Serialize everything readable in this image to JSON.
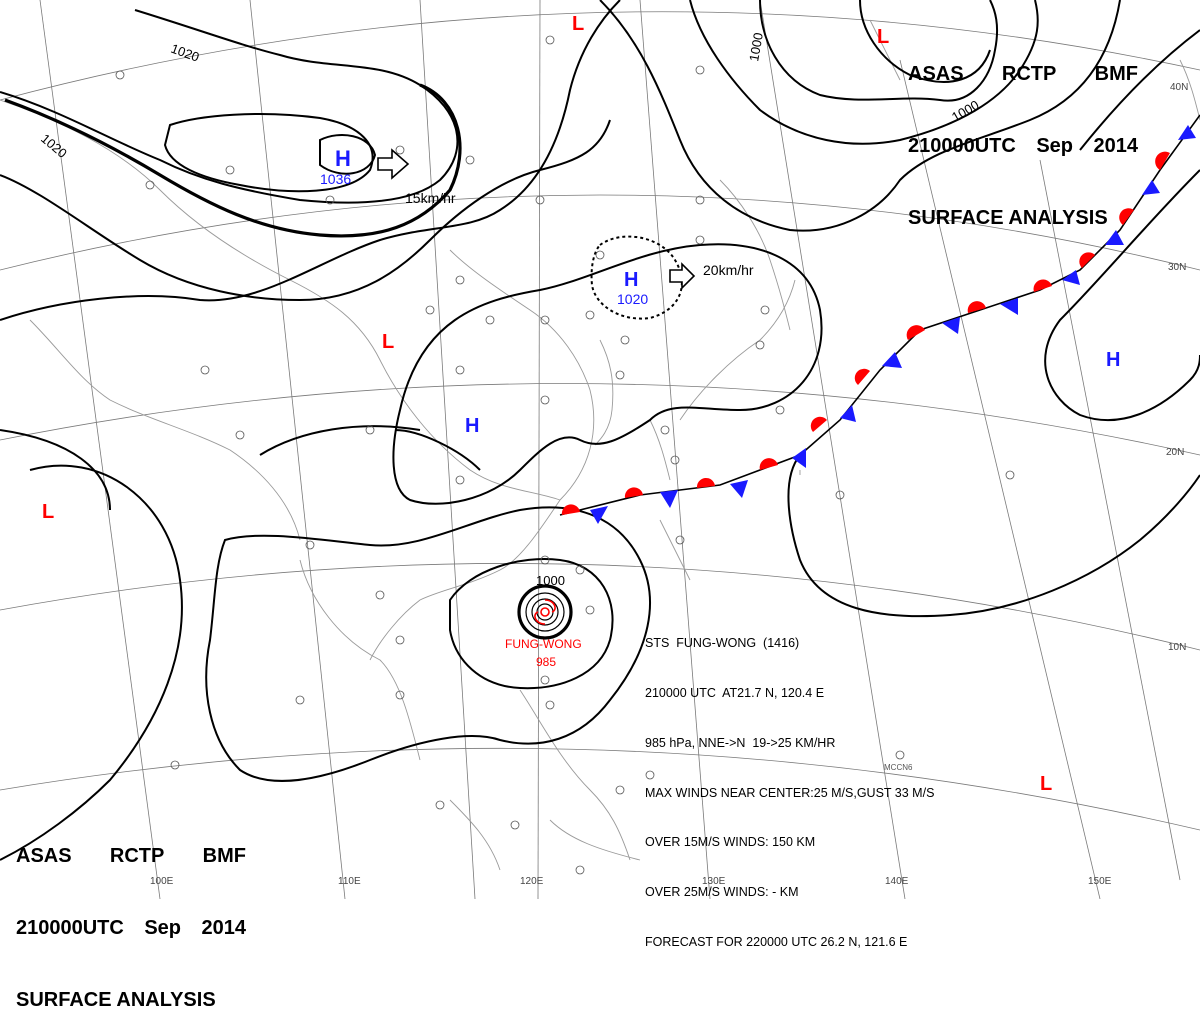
{
  "header": {
    "agency_line": [
      "ASAS",
      "RCTP",
      "BMF"
    ],
    "time_line": [
      "210000UTC",
      "Sep",
      "2014"
    ],
    "title": "SURFACE ANALYSIS"
  },
  "pressure_centers": [
    {
      "type": "H",
      "value": "1036",
      "motion": "15km/hr",
      "color": "#1a1aff"
    },
    {
      "type": "H",
      "value": "1020",
      "motion": "20km/hr",
      "color": "#1a1aff"
    },
    {
      "type": "H",
      "value": "",
      "motion": "",
      "color": "#1a1aff"
    },
    {
      "type": "H",
      "value": "",
      "motion": "",
      "color": "#1a1aff"
    },
    {
      "type": "L",
      "value": "",
      "motion": "",
      "color": "#ff0000"
    },
    {
      "type": "L",
      "value": "",
      "motion": "",
      "color": "#ff0000"
    },
    {
      "type": "L",
      "value": "",
      "motion": "",
      "color": "#ff0000"
    },
    {
      "type": "L",
      "value": "",
      "motion": "",
      "color": "#ff0000"
    }
  ],
  "isobar_labels": [
    "1020",
    "1020",
    "1000",
    "1000",
    "1000"
  ],
  "storm": {
    "name_label": "FUNG-WONG",
    "pressure_label": "985",
    "info": [
      "STS  FUNG-WONG  (1416)",
      "210000 UTC  AT21.7 N, 120.4 E",
      "985 hPa, NNE->N  19->25 KM/HR",
      "MAX WINDS NEAR CENTER:25 M/S,GUST 33 M/S",
      "OVER 15M/S WINDS: 150 KM",
      "OVER 25M/S WINDS: - KM",
      "FORECAST FOR 220000 UTC 26.2 N, 121.6 E"
    ],
    "color": "#ff0000"
  },
  "longitude_labels": [
    "100E",
    "110E",
    "120E",
    "130E",
    "140E",
    "150E"
  ],
  "latitude_labels": [
    "40N",
    "30N",
    "20N",
    "10N"
  ],
  "station_codes": [
    "MCCN6"
  ],
  "colors": {
    "warm_front": "#ff0000",
    "cold_front": "#1a1aff",
    "isobar": "#000000",
    "grid": "#808080",
    "coast": "#9a9a9a"
  }
}
